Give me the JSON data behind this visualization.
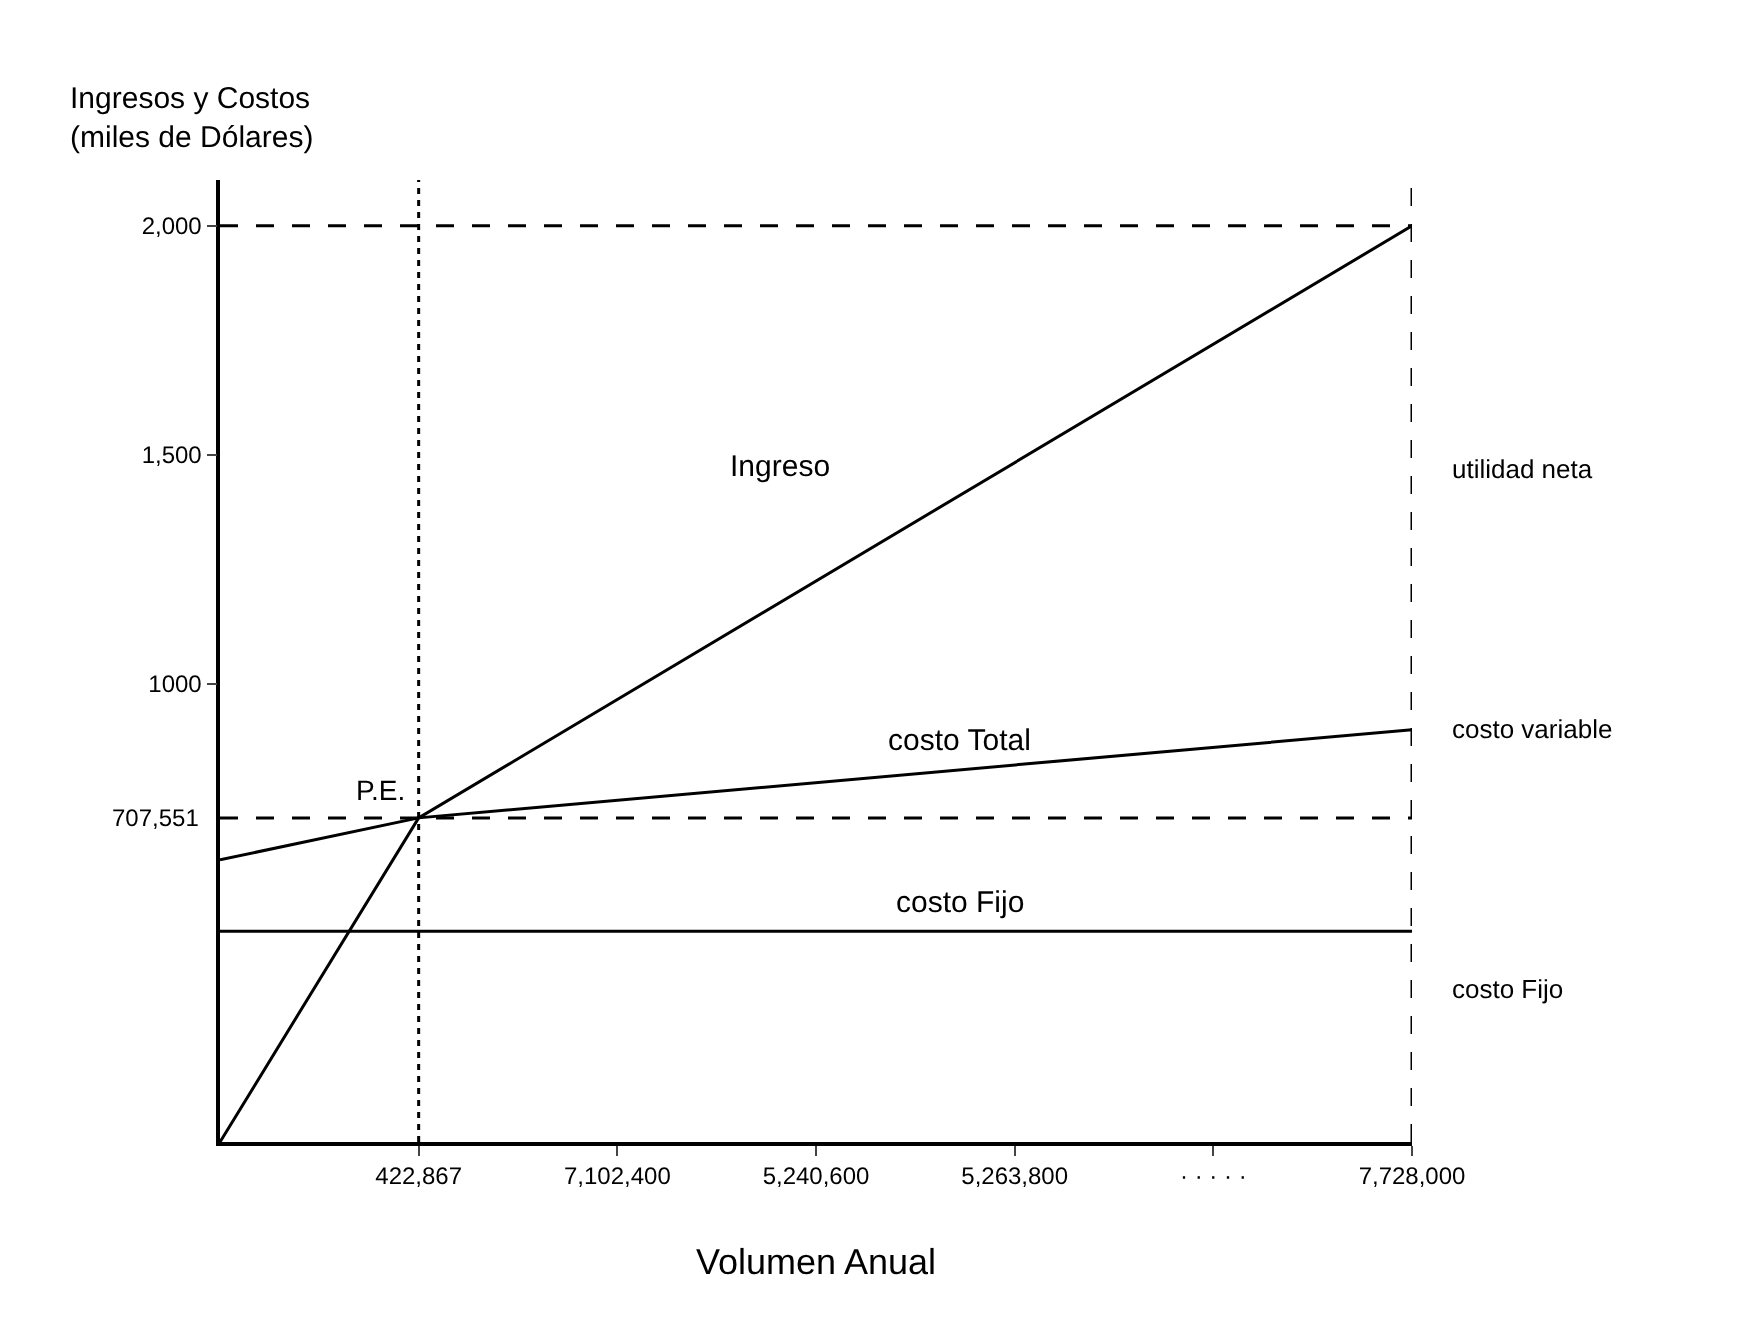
{
  "chart_data": {
    "type": "line",
    "ylabel": "Ingresos y Costos\n(miles de Dólares)",
    "xlabel": "Volumen Anual",
    "categories": [
      null,
      "422,867",
      "7,102,400",
      "5,240,600",
      "5,263,800",
      "· · · · ·",
      "7,728,000"
    ],
    "series": [
      {
        "name": "Ingreso",
        "color": "#000000",
        "values": [
          0,
          707.551,
          null,
          null,
          null,
          null,
          2000
        ]
      },
      {
        "name": "costo Total",
        "color": "#000000",
        "values": [
          616,
          707.551,
          null,
          null,
          null,
          null,
          900
        ]
      },
      {
        "name": "costo Fijo",
        "color": "#000000",
        "values": [
          460,
          460,
          460,
          460,
          460,
          460,
          460
        ]
      }
    ],
    "ylim": [
      0,
      2100
    ],
    "yticks": [
      1000,
      {
        "value": 1500,
        "label": "1,500"
      },
      {
        "value": 2000,
        "label": "2,000"
      }
    ],
    "ref_lines": [
      {
        "axis": "y",
        "value": 2000,
        "line_style": "dashed",
        "color": "#000000"
      },
      {
        "axis": "x",
        "value": "7,728,000",
        "line_style": "dashed",
        "color": "#000000"
      },
      {
        "axis": "x",
        "value": "422,867",
        "line_style": "dotted",
        "color": "#000000"
      },
      {
        "axis": "y",
        "value": 707.551,
        "label": "707,551",
        "line_style": "dashed",
        "color": "#000000"
      }
    ],
    "annotations": [
      {
        "text": "P.E.",
        "x": "422,867",
        "y": 707.551
      },
      "utilidad neta",
      "costo variable",
      "costo Fijo"
    ],
    "grid": false,
    "legend": false,
    "marker": "none",
    "line_style": "solid"
  }
}
